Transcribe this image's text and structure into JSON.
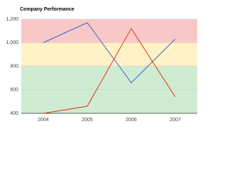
{
  "chart_data": {
    "type": "line",
    "title": "Company Performance",
    "categories": [
      "2004",
      "2005",
      "2006",
      "2007"
    ],
    "series": [
      {
        "color": "#3366cc",
        "values": [
          1000,
          1170,
          660,
          1030
        ]
      },
      {
        "color": "#dc3912",
        "values": [
          400,
          460,
          1120,
          540
        ]
      }
    ],
    "bands": [
      {
        "from": 1000,
        "to": 1200,
        "color": "#f8c8c8"
      },
      {
        "from": 800,
        "to": 1000,
        "color": "#fff2c6"
      },
      {
        "from": 400,
        "to": 800,
        "color": "#cfebd2"
      }
    ],
    "ylim": [
      400,
      1200
    ],
    "yticks": [
      400,
      600,
      800,
      {
        "value": 1000,
        "label": "1,000"
      },
      {
        "value": 1200,
        "label": "1,200"
      }
    ],
    "grid": true
  }
}
